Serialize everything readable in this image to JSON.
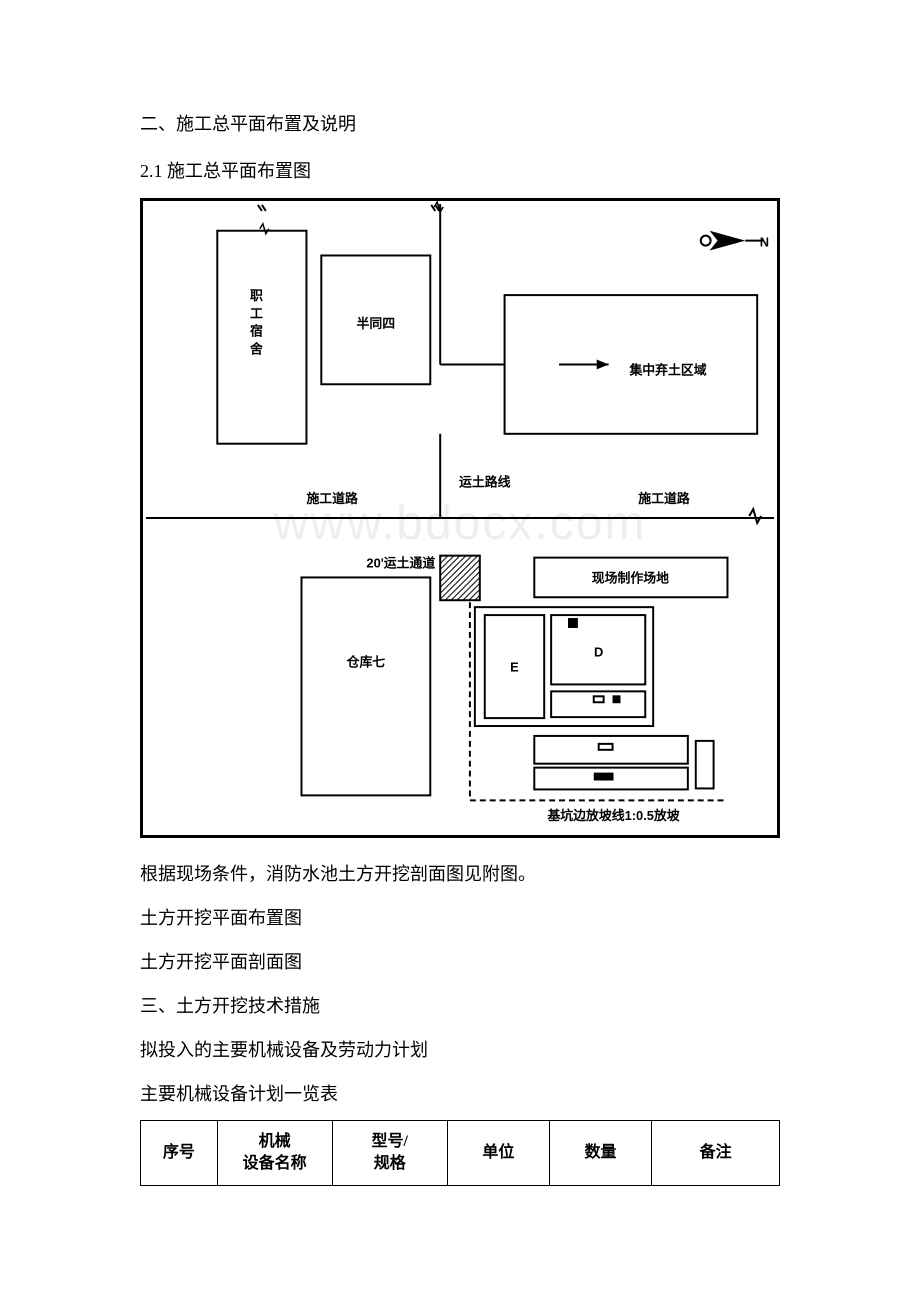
{
  "headings": {
    "section2": "二、施工总平面布置及说明",
    "subsection21": "2.1 施工总平面布置图"
  },
  "watermark": "www.bdocx.com",
  "diagram": {
    "border_color": "#000000",
    "border_width": 3,
    "north_label": "N",
    "labels": {
      "staff_dorm": "职工宿舍",
      "dorm_room": "半同四",
      "soil_area": "集中弃土区域",
      "road_left": "施工道路",
      "road_right": "施工道路",
      "soil_route": "运土路线",
      "channel": "20'运土通道",
      "site_fab": "现场制作场地",
      "warehouse": "仓库七",
      "pit_line": "基坑边放坡线1:0.5放坡"
    },
    "compass": {
      "fill": "#000000"
    },
    "hatch_color": "#000000"
  },
  "paragraphs": {
    "p1": "根据现场条件，消防水池土方开挖剖面图见附图。",
    "p2": "土方开挖平面布置图",
    "p3": "土方开挖平面剖面图",
    "section3": "三、土方开挖技术措施",
    "p4": "拟投入的主要机械设备及劳动力计划",
    "p5": "主要机械设备计划一览表"
  },
  "table": {
    "columns": [
      "序号",
      "机械设备名称",
      "型号/规格",
      "单位",
      "数量",
      "备注"
    ],
    "col_widths": [
      "12%",
      "18%",
      "18%",
      "16%",
      "16%",
      "20%"
    ],
    "border_color": "#000000",
    "font_size": 16
  }
}
